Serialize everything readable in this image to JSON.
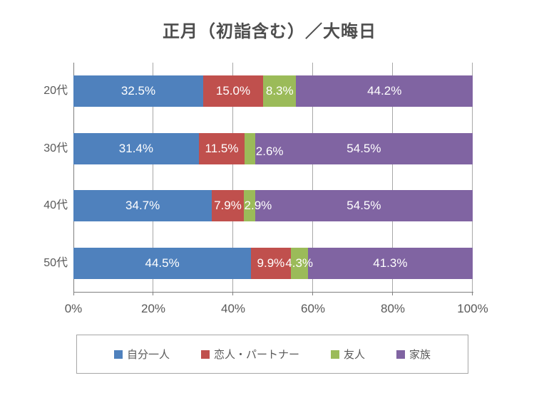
{
  "title": "正月（初詣含む）／大晦日",
  "chart_data": {
    "type": "bar",
    "variant": "horizontal-stacked-100",
    "title": "正月（初詣含む）／大晦日",
    "categories": [
      "20代",
      "30代",
      "40代",
      "50代"
    ],
    "series": [
      {
        "name": "自分一人",
        "color": "#4F81BD",
        "values": [
          32.5,
          31.4,
          34.7,
          44.5
        ]
      },
      {
        "name": "恋人・パートナー",
        "color": "#C0504D",
        "values": [
          15.0,
          11.5,
          7.9,
          9.9
        ]
      },
      {
        "name": "友人",
        "color": "#9BBB59",
        "values": [
          8.3,
          2.6,
          2.9,
          4.3
        ]
      },
      {
        "name": "家族",
        "color": "#8064A2",
        "values": [
          44.2,
          54.5,
          54.5,
          41.3
        ]
      }
    ],
    "data_label_suffix": "%",
    "data_label_decimals": 1,
    "data_label_color": "#ffffff",
    "x_ticks": [
      {
        "label": "0%",
        "percent": 0
      },
      {
        "label": "20%",
        "percent": 20
      },
      {
        "label": "40%",
        "percent": 40
      },
      {
        "label": "60%",
        "percent": 60
      },
      {
        "label": "80%",
        "percent": 80
      },
      {
        "label": "100%",
        "percent": 100
      }
    ],
    "xlim": [
      0,
      100
    ],
    "gridlines": "vertical-major",
    "gridline_color": "#a8a8a8",
    "axis_color": "#7f7f7f",
    "text_color": "#595959",
    "legend_position": "bottom",
    "legend_border_color": "#a6a6a6"
  }
}
